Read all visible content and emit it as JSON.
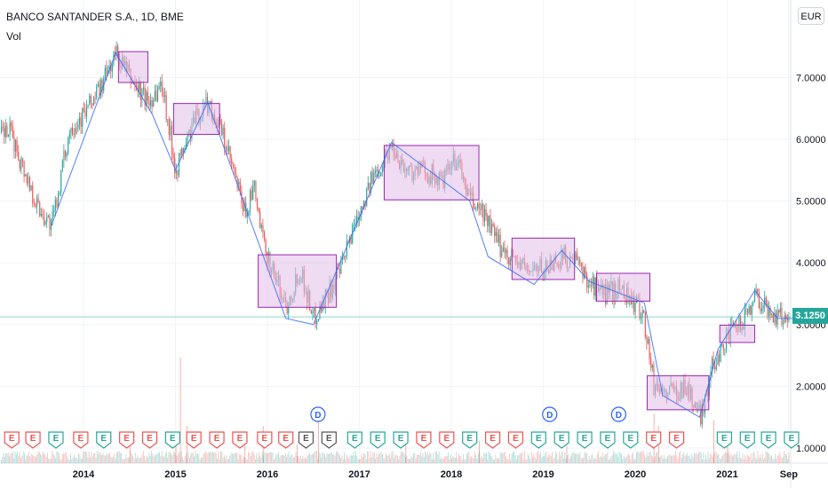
{
  "header": {
    "title": "BANCO SANTANDER S.A., 1D, BME",
    "volume_label": "Vol",
    "currency": "EUR"
  },
  "last_price": "3.1250",
  "colors": {
    "up": "#26a69a",
    "down": "#ef5350",
    "zigzag": "#2962ff",
    "box_fill": "#e1bee7",
    "box_stroke": "#9c27b0",
    "price_tag": "#26a69a",
    "grid": "#f0f3fa"
  },
  "chart_data": {
    "type": "candlestick",
    "x_range": [
      2013.2,
      2021.85
    ],
    "y_range": [
      0.87,
      8.0
    ],
    "grid": true,
    "y_ticks": [
      {
        "value": 7.0,
        "label": "7.0000"
      },
      {
        "value": 6.0,
        "label": "6.0000"
      },
      {
        "value": 5.0,
        "label": "5.0000"
      },
      {
        "value": 4.0,
        "label": "4.0000"
      },
      {
        "value": 3.0,
        "label": "3.0000"
      },
      {
        "value": 2.0,
        "label": "2.0000"
      },
      {
        "value": 1.0,
        "label": "1.0000"
      }
    ],
    "x_ticks": [
      {
        "value": 2014.0,
        "label": "2014"
      },
      {
        "value": 2015.0,
        "label": "2015"
      },
      {
        "value": 2016.0,
        "label": "2016"
      },
      {
        "value": 2017.0,
        "label": "2017"
      },
      {
        "value": 2018.0,
        "label": "2018"
      },
      {
        "value": 2019.0,
        "label": "2019"
      },
      {
        "value": 2020.0,
        "label": "2020"
      },
      {
        "value": 2021.0,
        "label": "2021"
      },
      {
        "value": 2021.67,
        "label": "Sep"
      }
    ],
    "price_path": [
      [
        2013.2,
        6.1
      ],
      [
        2013.4,
        5.3
      ],
      [
        2013.5,
        4.9
      ],
      [
        2013.65,
        4.6
      ],
      [
        2013.85,
        6.2
      ],
      [
        2014.0,
        6.4
      ],
      [
        2014.2,
        6.9
      ],
      [
        2014.35,
        7.4
      ],
      [
        2014.5,
        7.0
      ],
      [
        2014.7,
        6.6
      ],
      [
        2014.85,
        6.9
      ],
      [
        2015.0,
        5.5
      ],
      [
        2015.2,
        6.3
      ],
      [
        2015.35,
        6.6
      ],
      [
        2015.5,
        6.1
      ],
      [
        2015.6,
        5.6
      ],
      [
        2015.75,
        4.8
      ],
      [
        2015.85,
        5.2
      ],
      [
        2015.95,
        4.3
      ],
      [
        2016.1,
        3.7
      ],
      [
        2016.2,
        3.3
      ],
      [
        2016.35,
        3.9
      ],
      [
        2016.5,
        3.1
      ],
      [
        2016.65,
        3.5
      ],
      [
        2016.8,
        3.9
      ],
      [
        2016.95,
        4.7
      ],
      [
        2017.15,
        5.4
      ],
      [
        2017.35,
        5.9
      ],
      [
        2017.5,
        5.5
      ],
      [
        2017.7,
        5.5
      ],
      [
        2017.9,
        5.3
      ],
      [
        2018.05,
        5.7
      ],
      [
        2018.2,
        5.0
      ],
      [
        2018.35,
        4.8
      ],
      [
        2018.5,
        4.3
      ],
      [
        2018.65,
        4.1
      ],
      [
        2018.8,
        3.9
      ],
      [
        2019.0,
        3.9
      ],
      [
        2019.2,
        4.1
      ],
      [
        2019.35,
        4.0
      ],
      [
        2019.5,
        3.7
      ],
      [
        2019.65,
        3.5
      ],
      [
        2019.85,
        3.6
      ],
      [
        2020.0,
        3.3
      ],
      [
        2020.08,
        3.2
      ],
      [
        2020.2,
        2.0
      ],
      [
        2020.35,
        1.9
      ],
      [
        2020.55,
        2.0
      ],
      [
        2020.7,
        1.5
      ],
      [
        2020.85,
        2.4
      ],
      [
        2021.0,
        2.8
      ],
      [
        2021.15,
        3.0
      ],
      [
        2021.3,
        3.5
      ],
      [
        2021.45,
        3.2
      ],
      [
        2021.6,
        3.1
      ],
      [
        2021.7,
        3.2
      ],
      [
        2021.8,
        3.125
      ]
    ],
    "zigzag": [
      [
        2013.65,
        4.6
      ],
      [
        2014.35,
        7.4
      ],
      [
        2014.75,
        6.4
      ],
      [
        2015.0,
        5.5
      ],
      [
        2015.35,
        6.6
      ],
      [
        2016.2,
        3.1
      ],
      [
        2016.5,
        3.0
      ],
      [
        2017.35,
        5.95
      ],
      [
        2018.2,
        5.0
      ],
      [
        2018.4,
        4.1
      ],
      [
        2018.9,
        3.65
      ],
      [
        2019.2,
        4.2
      ],
      [
        2019.5,
        3.7
      ],
      [
        2020.1,
        3.35
      ],
      [
        2020.3,
        1.85
      ],
      [
        2020.7,
        1.5
      ],
      [
        2020.9,
        2.6
      ],
      [
        2021.3,
        3.55
      ],
      [
        2021.55,
        3.1
      ],
      [
        2021.8,
        3.1
      ]
    ],
    "boxes": [
      {
        "x0": 2014.38,
        "x1": 2014.7,
        "y0": 6.92,
        "y1": 7.42
      },
      {
        "x0": 2014.98,
        "x1": 2015.48,
        "y0": 6.08,
        "y1": 6.58
      },
      {
        "x0": 2015.9,
        "x1": 2016.75,
        "y0": 3.28,
        "y1": 4.13
      },
      {
        "x0": 2017.27,
        "x1": 2018.3,
        "y0": 5.02,
        "y1": 5.9
      },
      {
        "x0": 2018.66,
        "x1": 2019.34,
        "y0": 3.73,
        "y1": 4.4
      },
      {
        "x0": 2019.58,
        "x1": 2020.16,
        "y0": 3.38,
        "y1": 3.83
      },
      {
        "x0": 2020.13,
        "x1": 2020.8,
        "y0": 1.62,
        "y1": 2.17
      },
      {
        "x0": 2020.92,
        "x1": 2021.3,
        "y0": 2.71,
        "y1": 2.99
      }
    ],
    "volume_spikes": [
      {
        "x": 2014.5,
        "v": 0.18
      },
      {
        "x": 2015.0,
        "v": 0.22
      },
      {
        "x": 2015.05,
        "v": 0.85
      },
      {
        "x": 2015.12,
        "v": 0.3
      },
      {
        "x": 2015.75,
        "v": 0.2
      },
      {
        "x": 2015.95,
        "v": 0.3
      },
      {
        "x": 2016.32,
        "v": 0.15
      },
      {
        "x": 2016.55,
        "v": 0.45
      },
      {
        "x": 2017.5,
        "v": 0.2
      },
      {
        "x": 2018.3,
        "v": 0.18
      },
      {
        "x": 2019.25,
        "v": 0.22
      },
      {
        "x": 2020.2,
        "v": 0.4
      },
      {
        "x": 2020.25,
        "v": 0.3
      },
      {
        "x": 2020.85,
        "v": 0.35
      },
      {
        "x": 2021.0,
        "v": 0.18
      }
    ],
    "earnings_markers": [
      {
        "x": 2013.22,
        "color": "red",
        "label": "E"
      },
      {
        "x": 2013.45,
        "color": "red",
        "label": "E"
      },
      {
        "x": 2013.7,
        "color": "green",
        "label": "E"
      },
      {
        "x": 2013.97,
        "color": "red",
        "label": "E"
      },
      {
        "x": 2014.22,
        "color": "green",
        "label": "E"
      },
      {
        "x": 2014.47,
        "color": "red",
        "label": "E"
      },
      {
        "x": 2014.72,
        "color": "red",
        "label": "E"
      },
      {
        "x": 2014.97,
        "color": "green",
        "label": "E"
      },
      {
        "x": 2015.2,
        "color": "red",
        "label": "E"
      },
      {
        "x": 2015.45,
        "color": "red",
        "label": "E"
      },
      {
        "x": 2015.7,
        "color": "red",
        "label": "E"
      },
      {
        "x": 2015.97,
        "color": "red",
        "label": "E"
      },
      {
        "x": 2016.2,
        "color": "red",
        "label": "E"
      },
      {
        "x": 2016.42,
        "color": "grey",
        "label": "E"
      },
      {
        "x": 2016.67,
        "color": "grey",
        "label": "E"
      },
      {
        "x": 2016.95,
        "color": "green",
        "label": "E"
      },
      {
        "x": 2017.2,
        "color": "green",
        "label": "E"
      },
      {
        "x": 2017.45,
        "color": "green",
        "label": "E"
      },
      {
        "x": 2017.7,
        "color": "red",
        "label": "E"
      },
      {
        "x": 2017.95,
        "color": "red",
        "label": "E"
      },
      {
        "x": 2018.2,
        "color": "green",
        "label": "E"
      },
      {
        "x": 2018.45,
        "color": "red",
        "label": "E"
      },
      {
        "x": 2018.7,
        "color": "red",
        "label": "E"
      },
      {
        "x": 2018.95,
        "color": "green",
        "label": "E"
      },
      {
        "x": 2019.2,
        "color": "green",
        "label": "E"
      },
      {
        "x": 2019.45,
        "color": "green",
        "label": "E"
      },
      {
        "x": 2019.7,
        "color": "green",
        "label": "E"
      },
      {
        "x": 2019.95,
        "color": "green",
        "label": "E"
      },
      {
        "x": 2020.2,
        "color": "red",
        "label": "E"
      },
      {
        "x": 2020.45,
        "color": "red",
        "label": "E"
      },
      {
        "x": 2020.97,
        "color": "green",
        "label": "E"
      },
      {
        "x": 2021.22,
        "color": "green",
        "label": "E"
      },
      {
        "x": 2021.45,
        "color": "green",
        "label": "E"
      },
      {
        "x": 2021.7,
        "color": "green",
        "label": "E"
      }
    ],
    "dividend_markers": [
      {
        "x": 2016.55,
        "label": "D"
      },
      {
        "x": 2019.07,
        "label": "D"
      },
      {
        "x": 2019.82,
        "label": "D"
      }
    ]
  }
}
